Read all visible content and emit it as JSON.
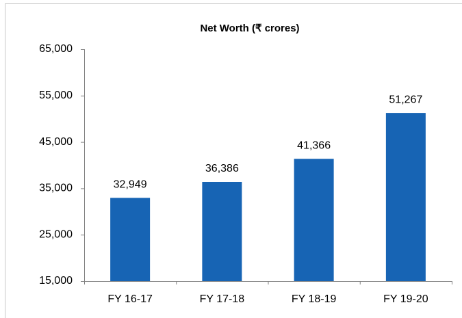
{
  "chart_data": {
    "type": "bar",
    "title": "Net Worth (₹ crores)",
    "categories": [
      "FY 16-17",
      "FY 17-18",
      "FY 18-19",
      "FY 19-20"
    ],
    "values": [
      32949,
      36386,
      41366,
      51267
    ],
    "value_labels": [
      "32,949",
      "36,386",
      "41,366",
      "51,267"
    ],
    "color": "#1764b4",
    "ylim": [
      15000,
      65000
    ],
    "yticks": [
      {
        "value": 15000,
        "label": "15,000"
      },
      {
        "value": 25000,
        "label": "25,000"
      },
      {
        "value": 35000,
        "label": "35,000"
      },
      {
        "value": 45000,
        "label": "45,000"
      },
      {
        "value": 55000,
        "label": "55,000"
      },
      {
        "value": 65000,
        "label": "65,000"
      }
    ],
    "grid": false
  }
}
